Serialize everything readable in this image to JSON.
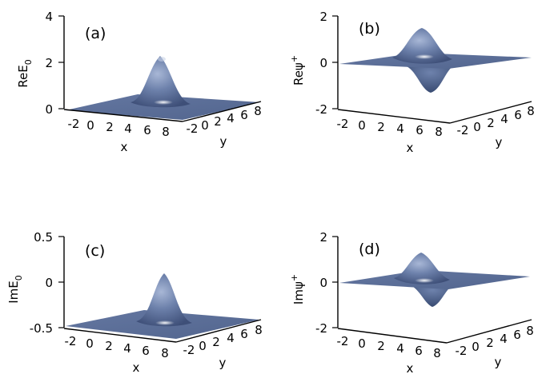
{
  "chart_data": [
    {
      "type": "surface",
      "panel_label": "(a)",
      "xlabel": "x",
      "ylabel": "y",
      "zlabel": "ReE",
      "zlabel_sub": "0",
      "zlabel_sup": "",
      "x_ticks": [
        "-2",
        "0",
        "2",
        "4",
        "6",
        "8"
      ],
      "y_ticks": [
        "-2",
        "0",
        "2",
        "4",
        "6",
        "8"
      ],
      "z_ticks": [
        "4",
        "2",
        "0"
      ],
      "zlim": [
        0,
        4
      ],
      "surface": {
        "shape": "single-peak",
        "peak_value": 2.2,
        "surface_color": "#5b6f99"
      }
    },
    {
      "type": "surface",
      "panel_label": "(b)",
      "xlabel": "x",
      "ylabel": "y",
      "zlabel": "Reψ",
      "zlabel_sub": "",
      "zlabel_sup": "+",
      "x_ticks": [
        "-2",
        "0",
        "2",
        "4",
        "6",
        "8"
      ],
      "y_ticks": [
        "-2",
        "0",
        "2",
        "4",
        "6",
        "8"
      ],
      "z_ticks": [
        "2",
        "0",
        "-2"
      ],
      "zlim": [
        -2,
        2
      ],
      "surface": {
        "shape": "dipole",
        "peak_value": 1.3,
        "trough_value": -1.1,
        "surface_color": "#5b6f99"
      }
    },
    {
      "type": "surface",
      "panel_label": "(c)",
      "xlabel": "x",
      "ylabel": "y",
      "zlabel": "ImE",
      "zlabel_sub": "0",
      "zlabel_sup": "",
      "x_ticks": [
        "-2",
        "0",
        "2",
        "4",
        "6",
        "8"
      ],
      "y_ticks": [
        "-2",
        "0",
        "2",
        "4",
        "6",
        "8"
      ],
      "z_ticks": [
        "0.5",
        "0",
        "-0.5"
      ],
      "zlim": [
        -0.5,
        0.5
      ],
      "surface": {
        "shape": "single-peak",
        "peak_value": 0.0,
        "base_value": -0.5,
        "surface_color": "#5b6f99"
      }
    },
    {
      "type": "surface",
      "panel_label": "(d)",
      "xlabel": "x",
      "ylabel": "y",
      "zlabel": "Imψ",
      "zlabel_sub": "",
      "zlabel_sup": "+",
      "x_ticks": [
        "-2",
        "0",
        "2",
        "4",
        "6",
        "8"
      ],
      "y_ticks": [
        "-2",
        "0",
        "2",
        "4",
        "6",
        "8"
      ],
      "z_ticks": [
        "2",
        "0",
        "-2"
      ],
      "zlim": [
        -2,
        2
      ],
      "surface": {
        "shape": "dipole",
        "peak_value": 1.0,
        "trough_value": -0.9,
        "surface_color": "#5b6f99"
      }
    }
  ]
}
